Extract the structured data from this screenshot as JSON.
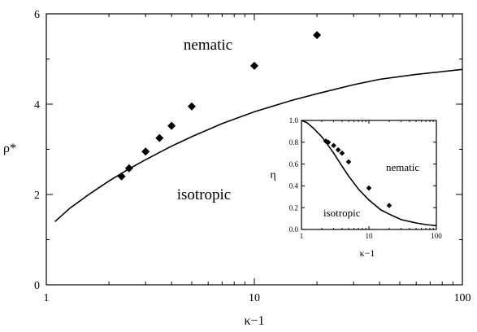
{
  "chart_data": [
    {
      "id": "main",
      "type": "scatter",
      "xscale": "log",
      "xlabel": "κ−1",
      "ylabel": "ρ*",
      "xlim": [
        1,
        100
      ],
      "ylim": [
        0,
        6
      ],
      "xticks": [
        1,
        10,
        100
      ],
      "yticks": [
        0,
        2,
        4,
        6
      ],
      "xtick_labels": [
        "1",
        "10",
        "100"
      ],
      "ytick_labels": [
        "0",
        "2",
        "4",
        "6"
      ],
      "grid": false,
      "annotations": [
        {
          "text": "nematic",
          "x": 3.5,
          "y": 5.3
        },
        {
          "text": "isotropic",
          "x": 3.5,
          "y": 2.0
        }
      ],
      "series": [
        {
          "type": "line",
          "x": [
            1.1,
            1.3,
            1.6,
            2.0,
            2.5,
            3.0,
            4.0,
            5.0,
            7.0,
            10,
            15,
            20,
            30,
            40,
            60,
            80,
            100
          ],
          "y": [
            1.4,
            1.7,
            2.0,
            2.3,
            2.57,
            2.77,
            3.07,
            3.28,
            3.57,
            3.83,
            4.08,
            4.23,
            4.43,
            4.55,
            4.66,
            4.72,
            4.77
          ]
        },
        {
          "type": "scatter",
          "marker": "diamond",
          "x": [
            2.3,
            2.5,
            3.0,
            3.5,
            4.0,
            5.0,
            10,
            20
          ],
          "y": [
            2.4,
            2.58,
            2.95,
            3.25,
            3.52,
            3.95,
            4.85,
            5.53
          ]
        }
      ]
    },
    {
      "id": "inset",
      "type": "scatter",
      "xscale": "log",
      "xlabel": "κ−1",
      "ylabel": "η",
      "xlim": [
        1,
        100
      ],
      "ylim": [
        0,
        1
      ],
      "xticks": [
        1,
        10,
        100
      ],
      "yticks": [
        0,
        0.2,
        0.4,
        0.6,
        0.8,
        1.0
      ],
      "xtick_labels": [
        "1",
        "10",
        "100"
      ],
      "ytick_labels": [
        "0.0",
        "0.2",
        "0.4",
        "0.6",
        "0.8",
        "1.0"
      ],
      "grid": false,
      "annotations": [
        {
          "text": "nematic",
          "x": 12,
          "y": 0.55
        },
        {
          "text": "isotropic",
          "x": 4.5,
          "y": 0.15
        }
      ],
      "series": [
        {
          "type": "line",
          "x": [
            1.0,
            1.2,
            1.5,
            2.0,
            2.5,
            3.0,
            4.0,
            5.0,
            7.0,
            10,
            15,
            20,
            30,
            50,
            70,
            100
          ],
          "y": [
            1.0,
            0.98,
            0.93,
            0.85,
            0.77,
            0.7,
            0.58,
            0.49,
            0.37,
            0.27,
            0.18,
            0.14,
            0.09,
            0.06,
            0.045,
            0.035
          ]
        },
        {
          "type": "scatter",
          "marker": "diamond",
          "x": [
            2.3,
            2.5,
            3.0,
            3.5,
            4.0,
            5.0,
            10,
            20
          ],
          "y": [
            0.81,
            0.8,
            0.77,
            0.73,
            0.7,
            0.62,
            0.38,
            0.22
          ]
        }
      ]
    }
  ]
}
